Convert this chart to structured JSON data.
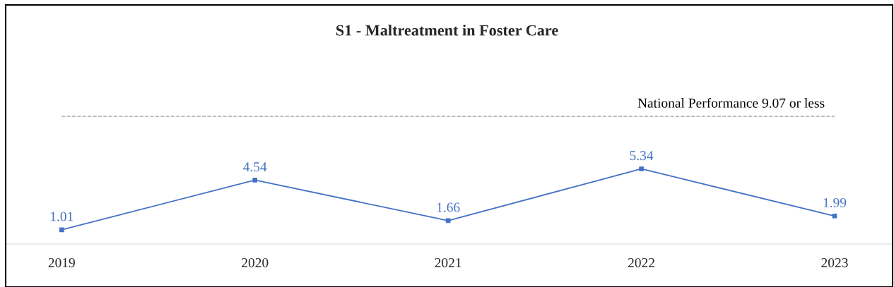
{
  "chart_data": {
    "type": "line",
    "title": "S1 - Maltreatment in Foster Care",
    "categories": [
      "2019",
      "2020",
      "2021",
      "2022",
      "2023"
    ],
    "series": [
      {
        "color": "#4472c4",
        "values": [
          1.01,
          4.54,
          1.66,
          5.34,
          1.99
        ]
      }
    ],
    "tick_labels": "x",
    "marker": "square",
    "line_style": "solid",
    "data_labels": true,
    "grid": false,
    "ref_lines": [
      {
        "axis": "y",
        "value": 9.07,
        "label": "National Performance 9.07 or less",
        "color": "#a6a6a6",
        "line_style": "dashed"
      }
    ]
  }
}
